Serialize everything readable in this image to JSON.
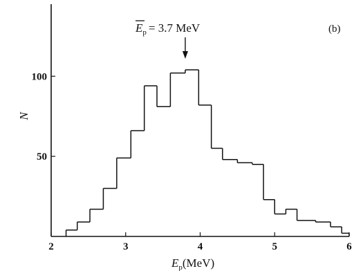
{
  "chart_data": {
    "type": "histogram",
    "panel_label": "(b)",
    "annotation": {
      "symbol": "E",
      "subscript": "p",
      "text": "= 3.7 MeV",
      "x": 3.8
    },
    "xlabel": {
      "symbol": "E",
      "subscript": "p",
      "unit": "(MeV)"
    },
    "ylabel": "N",
    "xlim": [
      2,
      6
    ],
    "ylim": [
      0,
      145
    ],
    "x_ticks": [
      2,
      3,
      4,
      5,
      6
    ],
    "x_tick_labels": [
      "2",
      "3",
      "4",
      "5",
      "6"
    ],
    "y_ticks": [
      50,
      100
    ],
    "y_tick_labels": [
      "50",
      "100"
    ],
    "bin_edges": [
      2.2,
      2.35,
      2.52,
      2.7,
      2.88,
      3.07,
      3.25,
      3.42,
      3.6,
      3.8,
      3.98,
      4.15,
      4.3,
      4.5,
      4.7,
      4.85,
      5.0,
      5.15,
      5.3,
      5.55,
      5.75,
      5.9,
      6.0
    ],
    "counts": [
      4,
      9,
      17,
      30,
      49,
      66,
      94,
      81,
      102,
      104,
      82,
      55,
      48,
      46,
      45,
      23,
      14,
      17,
      10,
      9,
      6,
      2
    ]
  }
}
